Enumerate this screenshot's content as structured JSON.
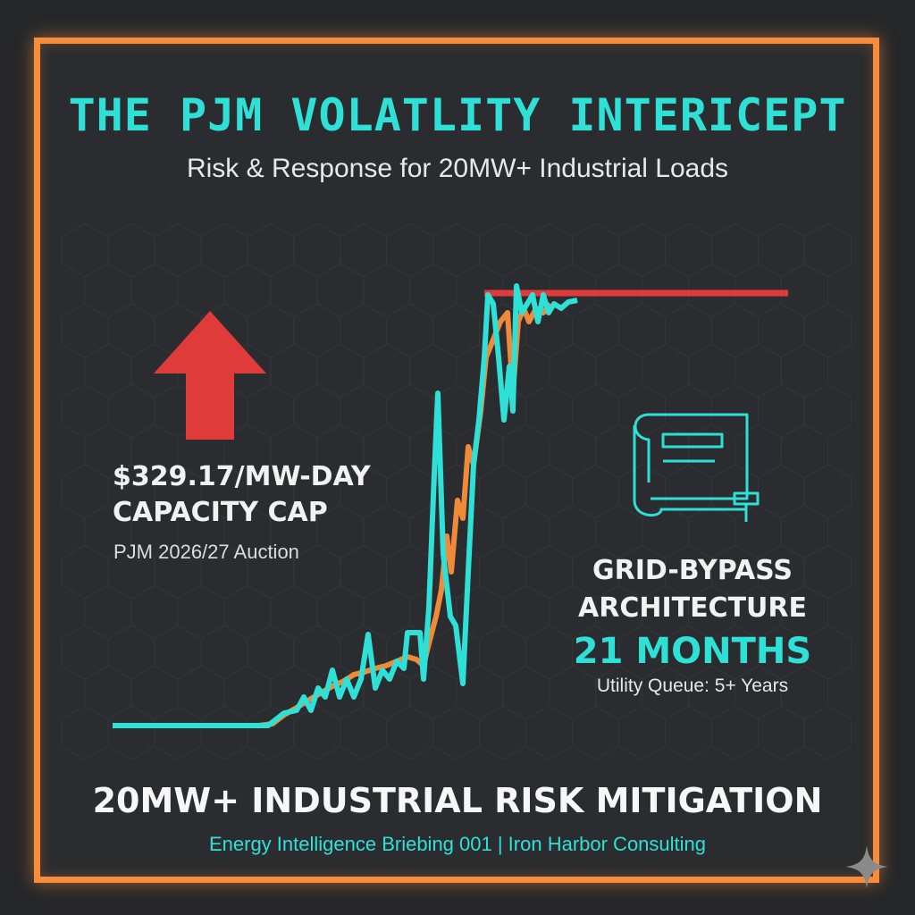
{
  "header": {
    "title": "THE PJM VOLATLITY INTERICEPT",
    "subtitle": "Risk & Response for 20MW+ Industrial Loads"
  },
  "left_panel": {
    "stat_line1": "$329.17/MW-DAY",
    "stat_line2": "CAPACITY CAP",
    "source": "PJM 2026/27 Auction",
    "icon": "up-arrow-icon"
  },
  "right_panel": {
    "heading_line1": "GRID-BYPASS",
    "heading_line2": "ARCHITECTURE",
    "months": "21 MONTHS",
    "queue": "Utility Queue: 5+ Years",
    "icon": "blueprint-icon"
  },
  "footer": {
    "title": "20MW+ INDUSTRIAL RISK MITIGATION",
    "subtitle": "Energy Intelligence Briebing 001 | Iron Harbor Consulting"
  },
  "colors": {
    "background": "#262729",
    "frame": "#f68d3c",
    "teal": "#2fe0d6",
    "orange": "#f08a3a",
    "red": "#e03b3b"
  }
}
